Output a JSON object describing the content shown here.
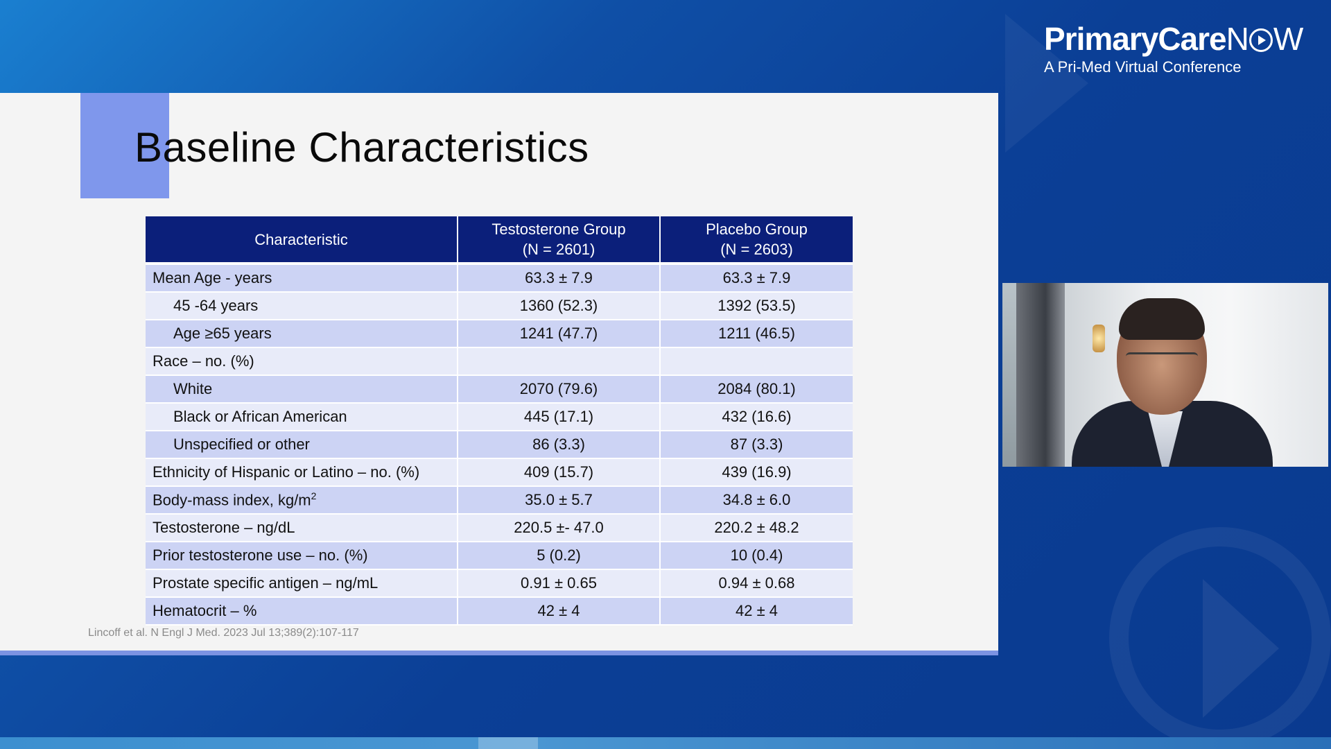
{
  "brand": {
    "name_part1": "PrimaryCare",
    "name_part2": "N",
    "name_part3": "W",
    "tagline": "A Pri-Med Virtual Conference"
  },
  "slide": {
    "title": "Baseline Characteristics",
    "table": {
      "headers": [
        {
          "line1": "Characteristic",
          "line2": ""
        },
        {
          "line1": "Testosterone Group",
          "line2": "(N = 2601)"
        },
        {
          "line1": "Placebo Group",
          "line2": "(N = 2603)"
        }
      ],
      "rows": [
        {
          "label": "Mean Age - years",
          "testosterone": "63.3 ± 7.9",
          "placebo": "63.3 ± 7.9"
        },
        {
          "label": "45 -64 years",
          "testosterone": "1360 (52.3)",
          "placebo": "1392 (53.5)"
        },
        {
          "label": "Age ≥65 years",
          "testosterone": "1241 (47.7)",
          "placebo": "1211 (46.5)"
        },
        {
          "label": "Race – no. (%)",
          "testosterone": "",
          "placebo": ""
        },
        {
          "label": "White",
          "testosterone": "2070 (79.6)",
          "placebo": "2084 (80.1)"
        },
        {
          "label": "Black or African American",
          "testosterone": "445 (17.1)",
          "placebo": "432 (16.6)"
        },
        {
          "label": "Unspecified or other",
          "testosterone": "86 (3.3)",
          "placebo": "87 (3.3)"
        },
        {
          "label": "Ethnicity of Hispanic or Latino – no. (%)",
          "testosterone": "409 (15.7)",
          "placebo": "439 (16.9)"
        },
        {
          "label": "Body-mass index, kg/m",
          "label_sup": "2",
          "testosterone": "35.0 ± 5.7",
          "placebo": "34.8 ± 6.0"
        },
        {
          "label": "Testosterone – ng/dL",
          "testosterone": "220.5 ±- 47.0",
          "placebo": "220.2 ± 48.2"
        },
        {
          "label": "Prior testosterone use – no. (%)",
          "testosterone": "5 (0.2)",
          "placebo": "10 (0.4)"
        },
        {
          "label": "Prostate specific antigen – ng/mL",
          "testosterone": "0.91 ± 0.65",
          "placebo": "0.94 ± 0.68"
        },
        {
          "label": "Hematocrit – %",
          "testosterone": "42 ± 4",
          "placebo": "42 ± 4"
        }
      ]
    },
    "citation": "Lincoff et al. N Engl J Med. 2023 Jul 13;389(2):107-117"
  },
  "colors": {
    "header_bg": "#0b1f7a",
    "row_dark": "#ccd3f4",
    "row_light": "#e8ebf9",
    "accent": "#7f97ec",
    "background_blue": "#0b3f96"
  },
  "icons": [
    "play-circle-icon"
  ]
}
